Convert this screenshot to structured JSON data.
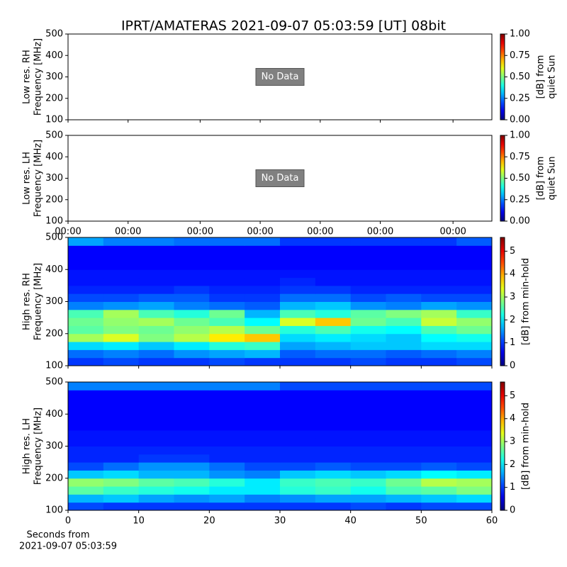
{
  "title": "IPRT/AMATERAS 2021-09-07 05:03:59 [UT]   08bit",
  "chart_data": [
    {
      "type": "empty",
      "ylabel": [
        "Low res. RH",
        "Frequency [MHz]"
      ],
      "annotation": "No Data",
      "xlim": [
        0,
        60
      ],
      "xticks": [
        0,
        8.5,
        18.7,
        27.2,
        35.7,
        44.2,
        54.5
      ],
      "show_xtick_labels": false,
      "ylim": [
        100,
        500
      ],
      "yticks": [
        100,
        200,
        300,
        400,
        500
      ],
      "clabel": [
        "[dB] from",
        "quiet Sun"
      ],
      "clim": [
        0,
        1
      ],
      "colormap": "jet",
      "cticks": [
        {
          "value": 0,
          "label": "0.00"
        },
        {
          "value": 0.25,
          "label": "0.25"
        },
        {
          "value": 0.5,
          "label": "0.50"
        },
        {
          "value": 0.75,
          "label": "0.75"
        },
        {
          "value": 1,
          "label": "1.00"
        }
      ]
    },
    {
      "type": "empty",
      "ylabel": [
        "Low res. LH",
        "Frequency [MHz]"
      ],
      "annotation": "No Data",
      "xlim": [
        0,
        60
      ],
      "xticks": [
        {
          "value": 0,
          "label": "00:00"
        },
        {
          "value": 8.5,
          "label": "00:00"
        },
        {
          "value": 18.7,
          "label": "00:00"
        },
        {
          "value": 27.2,
          "label": "00:00"
        },
        {
          "value": 35.7,
          "label": "00:00"
        },
        {
          "value": 44.2,
          "label": "00:00"
        },
        {
          "value": 54.5,
          "label": "00:00"
        }
      ],
      "show_xtick_labels": true,
      "ylim": [
        100,
        500
      ],
      "yticks": [
        100,
        200,
        300,
        400,
        500
      ],
      "clabel": [
        "[dB] from",
        "quiet Sun"
      ],
      "clim": [
        0,
        1
      ],
      "colormap": "jet",
      "cticks": [
        {
          "value": 0,
          "label": "0.00"
        },
        {
          "value": 0.25,
          "label": "0.25"
        },
        {
          "value": 0.5,
          "label": "0.50"
        },
        {
          "value": 0.75,
          "label": "0.75"
        },
        {
          "value": 1,
          "label": "1.00"
        }
      ]
    },
    {
      "type": "heatmap",
      "ylabel": [
        "High res. RH",
        "Frequency [MHz]"
      ],
      "xlim": [
        0,
        60
      ],
      "xticks": [
        0,
        10,
        20,
        30,
        40,
        50,
        60
      ],
      "show_xtick_labels": false,
      "ylim": [
        100,
        500
      ],
      "yticks": [
        100,
        200,
        300,
        400,
        500
      ],
      "clabel": [
        "[dB] from min-hold"
      ],
      "clim": [
        0,
        5.6
      ],
      "colormap": "jet",
      "cticks": [
        0,
        1,
        2,
        3,
        4,
        5
      ],
      "x_bins": [
        0,
        5,
        10,
        15,
        20,
        25,
        30,
        35,
        40,
        45,
        50,
        55,
        60
      ],
      "y_bins": [
        100,
        125,
        150,
        175,
        200,
        225,
        250,
        275,
        300,
        325,
        350,
        375,
        400,
        425,
        450,
        475,
        500
      ],
      "z": [
        [
          1.0,
          1.1,
          1.0,
          1.0,
          1.1,
          1.0,
          1.0,
          1.0,
          1.1,
          1.0,
          1.0,
          1.1
        ],
        [
          1.3,
          1.4,
          1.3,
          1.5,
          1.6,
          1.7,
          1.2,
          1.3,
          1.3,
          1.2,
          1.3,
          1.4
        ],
        [
          1.9,
          2.0,
          1.8,
          2.0,
          2.3,
          2.4,
          1.6,
          1.7,
          1.8,
          1.8,
          1.9,
          1.9
        ],
        [
          3.0,
          3.3,
          2.8,
          3.1,
          3.6,
          3.8,
          1.9,
          2.0,
          1.9,
          1.8,
          2.1,
          2.2
        ],
        [
          2.6,
          2.8,
          2.7,
          2.9,
          3.1,
          2.7,
          2.3,
          2.5,
          2.2,
          2.1,
          2.5,
          2.7
        ],
        [
          2.7,
          2.9,
          3.0,
          2.7,
          2.5,
          2.1,
          3.3,
          3.8,
          2.7,
          2.5,
          3.2,
          2.9
        ],
        [
          2.5,
          3.0,
          2.5,
          2.3,
          2.7,
          1.7,
          2.5,
          2.3,
          2.6,
          2.8,
          3.0,
          2.4
        ],
        [
          1.4,
          1.5,
          1.6,
          1.4,
          1.3,
          1.2,
          1.7,
          1.8,
          1.5,
          1.4,
          1.6,
          1.5
        ],
        [
          1.1,
          1.1,
          1.2,
          1.2,
          1.0,
          1.0,
          1.3,
          1.3,
          1.1,
          1.2,
          1.1,
          1.1
        ],
        [
          0.9,
          0.9,
          0.9,
          1.0,
          0.9,
          0.9,
          1.0,
          1.0,
          0.9,
          0.9,
          0.9,
          0.9
        ],
        [
          0.8,
          0.8,
          0.8,
          0.8,
          0.8,
          0.8,
          0.9,
          0.8,
          0.8,
          0.8,
          0.8,
          0.8
        ],
        [
          0.8,
          0.8,
          0.8,
          0.8,
          0.8,
          0.8,
          0.8,
          0.8,
          0.8,
          0.8,
          0.8,
          0.8
        ],
        [
          0.7,
          0.7,
          0.7,
          0.7,
          0.7,
          0.7,
          0.7,
          0.7,
          0.7,
          0.7,
          0.7,
          0.7
        ],
        [
          0.7,
          0.7,
          0.7,
          0.7,
          0.7,
          0.7,
          0.7,
          0.7,
          0.7,
          0.7,
          0.7,
          0.7
        ],
        [
          0.7,
          0.7,
          0.7,
          0.7,
          0.7,
          0.7,
          0.7,
          0.7,
          0.7,
          0.7,
          0.7,
          0.7
        ],
        [
          1.6,
          1.4,
          1.4,
          1.3,
          1.3,
          1.3,
          1.0,
          1.0,
          1.0,
          1.0,
          1.0,
          1.2
        ]
      ]
    },
    {
      "type": "heatmap",
      "ylabel": [
        "High res. LH",
        "Frequency [MHz]"
      ],
      "xlabel": [
        "Seconds from",
        "2021-09-07 05:03:59"
      ],
      "xlim": [
        0,
        60
      ],
      "xticks": [
        0,
        10,
        20,
        30,
        40,
        50,
        60
      ],
      "show_xtick_labels": true,
      "ylim": [
        100,
        500
      ],
      "yticks": [
        100,
        200,
        300,
        400,
        500
      ],
      "clabel": [
        "[dB] from min-hold"
      ],
      "clim": [
        0,
        5.6
      ],
      "colormap": "jet",
      "cticks": [
        0,
        1,
        2,
        3,
        4,
        5
      ],
      "x_bins": [
        0,
        5,
        10,
        15,
        20,
        25,
        30,
        35,
        40,
        45,
        50,
        55,
        60
      ],
      "y_bins": [
        100,
        125,
        150,
        175,
        200,
        225,
        250,
        275,
        300,
        325,
        350,
        375,
        400,
        425,
        450,
        475,
        500
      ],
      "z": [
        [
          1.1,
          1.0,
          1.0,
          1.0,
          1.0,
          1.0,
          1.0,
          1.0,
          1.1,
          1.0,
          1.1,
          1.1
        ],
        [
          1.7,
          1.8,
          1.6,
          1.5,
          1.6,
          1.4,
          1.5,
          1.6,
          1.6,
          1.7,
          1.8,
          1.9
        ],
        [
          2.6,
          2.4,
          2.3,
          2.2,
          2.0,
          2.0,
          2.3,
          2.4,
          2.2,
          2.5,
          2.6,
          2.8
        ],
        [
          2.9,
          2.8,
          2.6,
          2.5,
          2.3,
          2.0,
          2.4,
          2.5,
          2.4,
          2.7,
          3.1,
          3.0
        ],
        [
          1.8,
          1.9,
          1.7,
          1.7,
          1.5,
          1.4,
          1.8,
          1.9,
          1.8,
          1.9,
          2.1,
          2.0
        ],
        [
          1.1,
          1.3,
          1.5,
          1.5,
          1.3,
          1.1,
          1.1,
          1.2,
          1.1,
          1.1,
          1.2,
          1.1
        ],
        [
          0.9,
          0.9,
          1.0,
          1.0,
          0.9,
          0.9,
          0.9,
          0.9,
          0.9,
          0.9,
          0.9,
          0.9
        ],
        [
          0.9,
          0.9,
          0.9,
          0.9,
          0.9,
          0.9,
          0.9,
          0.9,
          0.9,
          0.9,
          0.9,
          0.9
        ],
        [
          0.8,
          0.8,
          0.8,
          0.8,
          0.8,
          0.8,
          0.8,
          0.8,
          0.8,
          0.8,
          0.8,
          0.8
        ],
        [
          0.8,
          0.8,
          0.8,
          0.8,
          0.8,
          0.8,
          0.8,
          0.8,
          0.8,
          0.8,
          0.8,
          0.8
        ],
        [
          0.7,
          0.7,
          0.7,
          0.7,
          0.7,
          0.7,
          0.7,
          0.7,
          0.7,
          0.7,
          0.7,
          0.7
        ],
        [
          0.7,
          0.7,
          0.7,
          0.7,
          0.7,
          0.7,
          0.7,
          0.7,
          0.7,
          0.7,
          0.7,
          0.7
        ],
        [
          0.7,
          0.7,
          0.7,
          0.7,
          0.7,
          0.7,
          0.7,
          0.7,
          0.7,
          0.7,
          0.7,
          0.7
        ],
        [
          0.7,
          0.7,
          0.7,
          0.7,
          0.7,
          0.7,
          0.7,
          0.7,
          0.7,
          0.7,
          0.7,
          0.7
        ],
        [
          0.7,
          0.7,
          0.7,
          0.7,
          0.7,
          0.7,
          0.7,
          0.7,
          0.7,
          0.7,
          0.7,
          0.7
        ],
        [
          1.4,
          1.4,
          1.4,
          1.4,
          1.4,
          1.4,
          1.1,
          1.1,
          1.1,
          1.1,
          1.1,
          1.1
        ]
      ]
    }
  ]
}
